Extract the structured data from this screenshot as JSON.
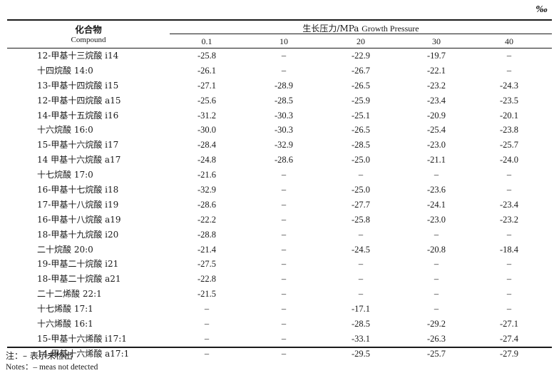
{
  "unit_symbol": "‰",
  "header": {
    "compound_zh": "化合物",
    "compound_en": "Compound",
    "pressure_label_zh": "生长压力/MPa",
    "pressure_label_en": "Growth Pressure",
    "columns": [
      "0.1",
      "10",
      "20",
      "30",
      "40"
    ]
  },
  "rows": [
    {
      "name": "12-甲基十三烷酸 i14",
      "values": [
        "-25.8",
        "–",
        "-22.9",
        "-19.7",
        "–"
      ]
    },
    {
      "name": "十四烷酸 14:0",
      "values": [
        "-26.1",
        "–",
        "-26.7",
        "-22.1",
        "–"
      ]
    },
    {
      "name": "13-甲基十四烷酸 i15",
      "values": [
        "-27.1",
        "-28.9",
        "-26.5",
        "-23.2",
        "-24.3"
      ]
    },
    {
      "name": "12-甲基十四烷酸 a15",
      "values": [
        "-25.6",
        "-28.5",
        "-25.9",
        "-23.4",
        "-23.5"
      ]
    },
    {
      "name": "14-甲基十五烷酸 i16",
      "values": [
        "-31.2",
        "-30.3",
        "-25.1",
        "-20.9",
        "-20.1"
      ]
    },
    {
      "name": "十六烷酸 16:0",
      "values": [
        "-30.0",
        "-30.3",
        "-26.5",
        "-25.4",
        "-23.8"
      ]
    },
    {
      "name": "15-甲基十六烷酸 i17",
      "values": [
        "-28.4",
        "-32.9",
        "-28.5",
        "-23.0",
        "-25.7"
      ]
    },
    {
      "name": "14 甲基十六烷酸 a17",
      "values": [
        "-24.8",
        "-28.6",
        "-25.0",
        "-21.1",
        "-24.0"
      ]
    },
    {
      "name": "十七烷酸 17:0",
      "values": [
        "-21.6",
        "–",
        "–",
        "–",
        "–"
      ]
    },
    {
      "name": "16-甲基十七烷酸 i18",
      "values": [
        "-32.9",
        "–",
        "-25.0",
        "-23.6",
        "–"
      ]
    },
    {
      "name": "17-甲基十八烷酸 i19",
      "values": [
        "-28.6",
        "–",
        "-27.7",
        "-24.1",
        "-23.4"
      ]
    },
    {
      "name": "16-甲基十八烷酸 a19",
      "values": [
        "-22.2",
        "–",
        "-25.8",
        "-23.0",
        "-23.2"
      ]
    },
    {
      "name": "18-甲基十九烷酸 i20",
      "values": [
        "-28.8",
        "–",
        "–",
        "–",
        "–"
      ]
    },
    {
      "name": "二十烷酸 20:0",
      "values": [
        "-21.4",
        "–",
        "-24.5",
        "-20.8",
        "-18.4"
      ]
    },
    {
      "name": "19-甲基二十烷酸 i21",
      "values": [
        "-27.5",
        "–",
        "–",
        "–",
        "–"
      ]
    },
    {
      "name": "18-甲基二十烷酸 a21",
      "values": [
        "-22.8",
        "–",
        "–",
        "–",
        "–"
      ]
    },
    {
      "name": "二十二烯酸 22:1",
      "values": [
        "-21.5",
        "–",
        "–",
        "–",
        "–"
      ]
    },
    {
      "name": "十七烯酸 17:1",
      "values": [
        "–",
        "–",
        "-17.1",
        "–",
        "–"
      ]
    },
    {
      "name": "十六烯酸 16:1",
      "values": [
        "–",
        "–",
        "-28.5",
        "-29.2",
        "-27.1"
      ]
    },
    {
      "name": "15-甲基十六烯酸 i17:1",
      "values": [
        "–",
        "–",
        "-33.1",
        "-26.3",
        "-27.4"
      ]
    },
    {
      "name": "14-甲基十六烯酸 a17:1",
      "values": [
        "–",
        "–",
        "-29.5",
        "-25.7",
        "-27.9"
      ]
    }
  ],
  "notes": {
    "zh": "注：– 表示未检出",
    "en": "Notes：– meas not detected"
  }
}
